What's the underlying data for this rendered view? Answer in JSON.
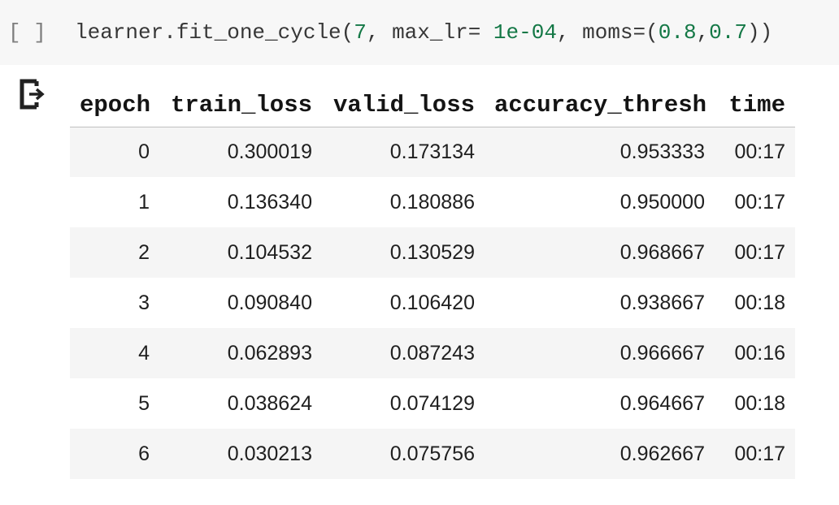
{
  "code_cell": {
    "prompt": "[ ]",
    "code_plain": "learner.fit_one_cycle(7, max_lr= 1e-04, moms=(0.8,0.7))",
    "tokens": [
      {
        "t": "learner.fit_one_cycle(",
        "c": "default"
      },
      {
        "t": "7",
        "c": "number"
      },
      {
        "t": ", max_lr= ",
        "c": "default"
      },
      {
        "t": "1e-04",
        "c": "number"
      },
      {
        "t": ", moms=(",
        "c": "default"
      },
      {
        "t": "0.8",
        "c": "number"
      },
      {
        "t": ",",
        "c": "default"
      },
      {
        "t": "0.7",
        "c": "number"
      },
      {
        "t": "))",
        "c": "default"
      }
    ]
  },
  "output": {
    "icon": "cell-output-icon",
    "table": {
      "headers": [
        "epoch",
        "train_loss",
        "valid_loss",
        "accuracy_thresh",
        "time"
      ],
      "rows": [
        [
          "0",
          "0.300019",
          "0.173134",
          "0.953333",
          "00:17"
        ],
        [
          "1",
          "0.136340",
          "0.180886",
          "0.950000",
          "00:17"
        ],
        [
          "2",
          "0.104532",
          "0.130529",
          "0.968667",
          "00:17"
        ],
        [
          "3",
          "0.090840",
          "0.106420",
          "0.938667",
          "00:18"
        ],
        [
          "4",
          "0.062893",
          "0.087243",
          "0.966667",
          "00:16"
        ],
        [
          "5",
          "0.038624",
          "0.074129",
          "0.964667",
          "00:18"
        ],
        [
          "6",
          "0.030213",
          "0.075756",
          "0.962667",
          "00:17"
        ]
      ]
    }
  },
  "colors": {
    "cell_bg": "#f7f7f7",
    "row_stripe": "#f5f5f5",
    "number_green": "#147846",
    "code_text": "#373737",
    "prompt_gray": "#7e7e7e",
    "header_border": "#c0c0c0",
    "table_text": "#1f1f1f"
  }
}
